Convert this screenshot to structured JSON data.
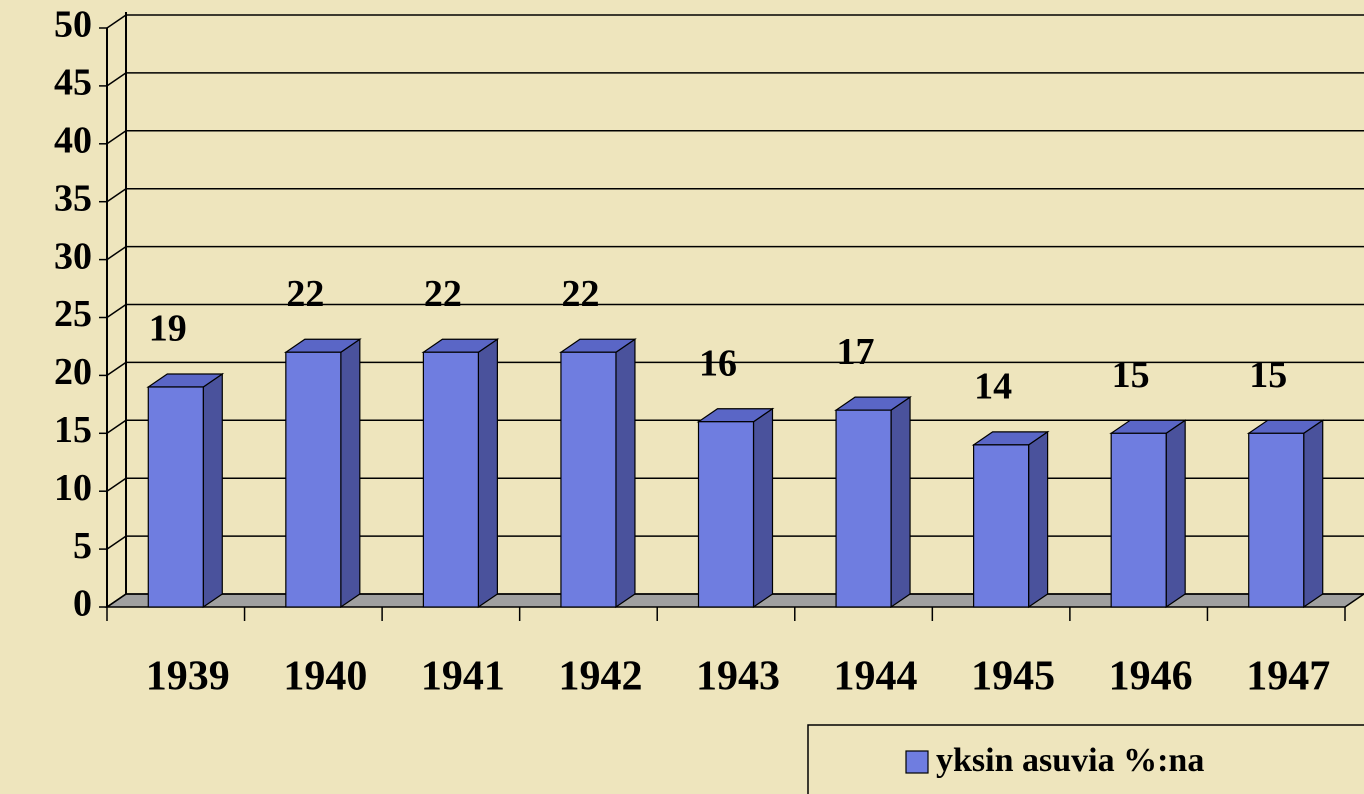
{
  "chart_data": {
    "type": "bar3d",
    "categories": [
      "1939",
      "1940",
      "1941",
      "1942",
      "1943",
      "1944",
      "1945",
      "1946",
      "1947"
    ],
    "series": [
      {
        "name": "yksin asuvia  %:na",
        "color": "#6f7de0",
        "values": [
          19,
          22,
          22,
          22,
          16,
          17,
          14,
          15,
          15
        ]
      }
    ],
    "ylim": [
      0,
      50
    ],
    "yticks": [
      0,
      5,
      10,
      15,
      20,
      25,
      30,
      35,
      40,
      45,
      50
    ],
    "grid": true,
    "legend": "bottom-right"
  }
}
